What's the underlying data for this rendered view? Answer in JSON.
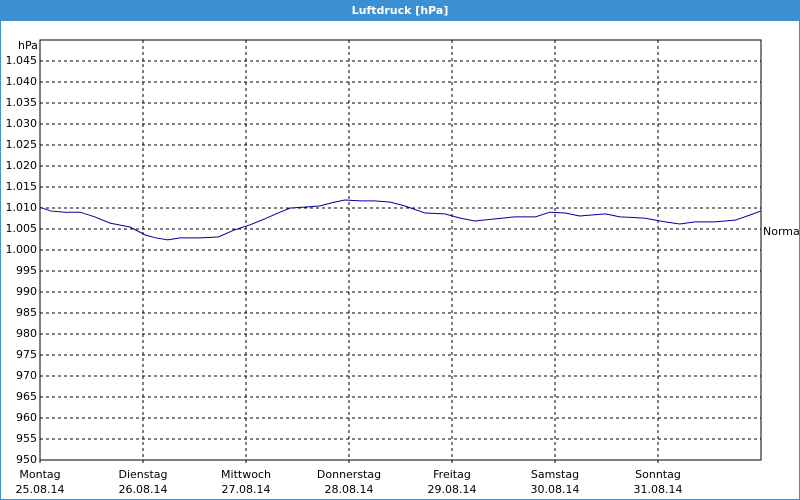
{
  "chart_data": {
    "type": "line",
    "title": "Luftdruck [hPa]",
    "y_unit_label": "hPa",
    "annotation": "Normal",
    "xlim": [
      0,
      7
    ],
    "xticks": [
      {
        "value": 0,
        "label": "Montag"
      },
      {
        "value": 1,
        "label": "Dienstag"
      },
      {
        "value": 2,
        "label": "Mittwoch"
      },
      {
        "value": 3,
        "label": "Donnerstag"
      },
      {
        "value": 4,
        "label": "Freitag"
      },
      {
        "value": 5,
        "label": "Samstag"
      },
      {
        "value": 6,
        "label": "Sonntag"
      }
    ],
    "xtick_dates": [
      "25.08.14",
      "26.08.14",
      "27.08.14",
      "28.08.14",
      "29.08.14",
      "30.08.14",
      "31.08.14"
    ],
    "ylim": [
      950,
      1050
    ],
    "yticks": [
      950,
      955,
      960,
      965,
      970,
      975,
      980,
      985,
      990,
      995,
      {
        "value": 1000,
        "label": "1.000"
      },
      {
        "value": 1005,
        "label": "1.005"
      },
      {
        "value": 1010,
        "label": "1.010"
      },
      {
        "value": 1015,
        "label": "1.015"
      },
      {
        "value": 1020,
        "label": "1.020"
      },
      {
        "value": 1025,
        "label": "1.025"
      },
      {
        "value": 1030,
        "label": "1.030"
      },
      {
        "value": 1035,
        "label": "1.035"
      },
      {
        "value": 1040,
        "label": "1.040"
      },
      {
        "value": 1045,
        "label": "1.045"
      }
    ],
    "grid": true,
    "series": [
      {
        "color": "#0000a0",
        "x": [
          0,
          0.1,
          0.24,
          0.39,
          0.53,
          0.68,
          0.87,
          1.02,
          1.12,
          1.24,
          1.36,
          1.55,
          1.73,
          1.89,
          2.04,
          2.18,
          2.33,
          2.43,
          2.57,
          2.72,
          2.86,
          2.96,
          3.11,
          3.25,
          3.4,
          3.54,
          3.74,
          3.93,
          4.08,
          4.22,
          4.42,
          4.61,
          4.81,
          4.95,
          5.1,
          5.24,
          5.49,
          5.63,
          5.87,
          6.07,
          6.21,
          6.36,
          6.55,
          6.75,
          6.89,
          7
        ],
        "values": [
          1010.2,
          1009.3,
          1009.0,
          1009.0,
          1007.9,
          1006.4,
          1005.5,
          1003.6,
          1002.9,
          1002.4,
          1002.9,
          1002.9,
          1003.1,
          1004.8,
          1006.0,
          1007.4,
          1009.0,
          1010.0,
          1010.2,
          1010.5,
          1011.4,
          1011.9,
          1011.7,
          1011.7,
          1011.4,
          1010.5,
          1008.8,
          1008.6,
          1007.6,
          1006.9,
          1007.4,
          1007.9,
          1007.9,
          1009.0,
          1008.8,
          1008.1,
          1008.6,
          1007.9,
          1007.6,
          1006.7,
          1006.2,
          1006.7,
          1006.7,
          1007.1,
          1008.3,
          1009.3
        ]
      }
    ]
  }
}
